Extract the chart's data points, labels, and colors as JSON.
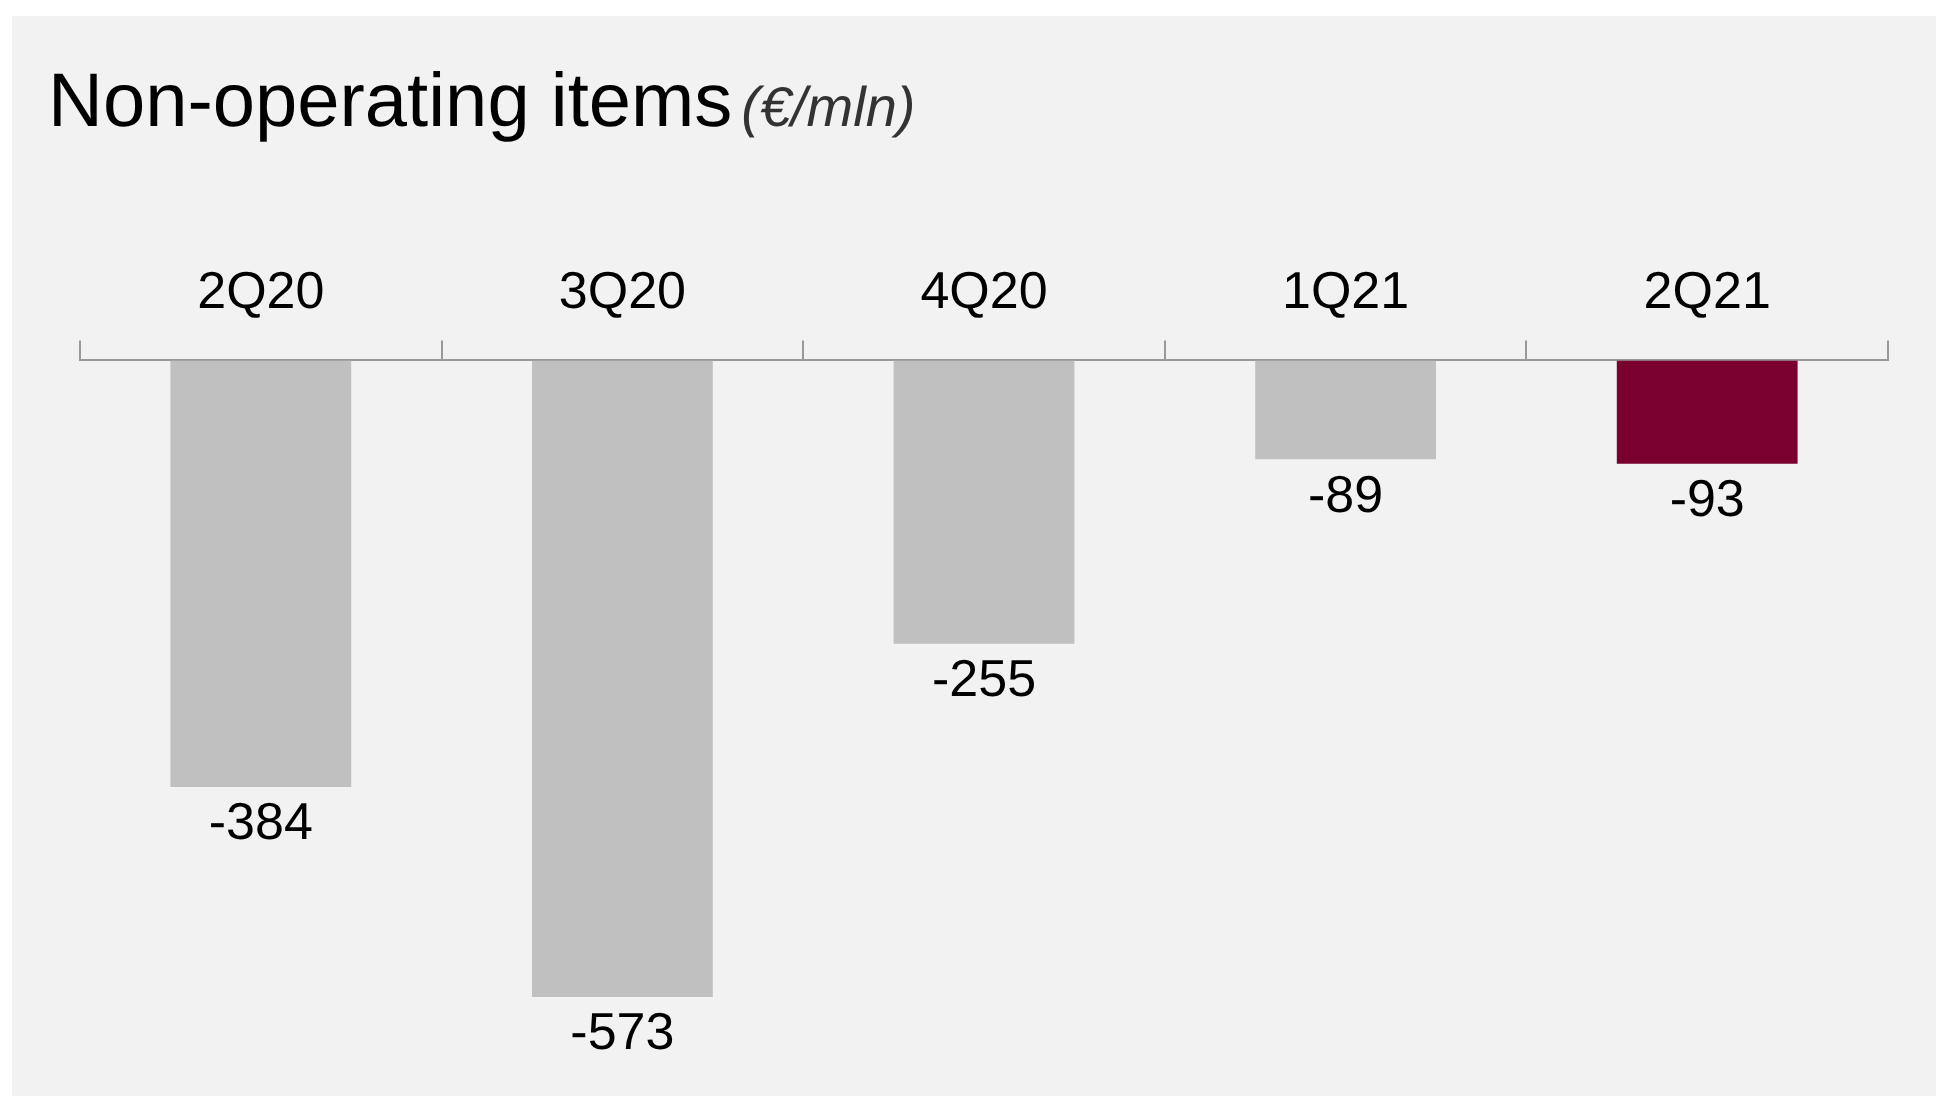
{
  "chart_data": {
    "type": "bar",
    "title": "Non-operating items",
    "subtitle": "(€/mln)",
    "categories": [
      "2Q20",
      "3Q20",
      "4Q20",
      "1Q21",
      "2Q21"
    ],
    "values": [
      -384,
      -573,
      -255,
      -89,
      -93
    ],
    "colors": [
      "#c0c0c0",
      "#c0c0c0",
      "#c0c0c0",
      "#c0c0c0",
      "#7a0030"
    ],
    "data_labels": true,
    "grid": false,
    "legend": false
  }
}
